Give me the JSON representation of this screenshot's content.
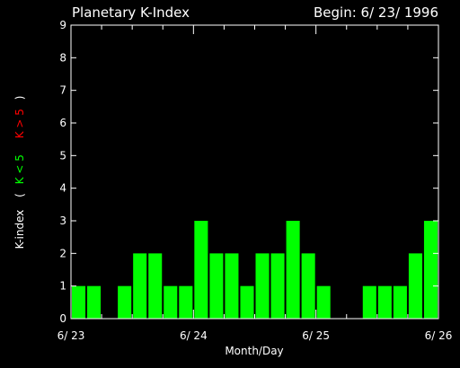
{
  "chart_data": {
    "type": "bar",
    "title": "Planetary K-Index",
    "subtitle": "Begin: 6/ 23/ 1996",
    "xlabel": "Month/Day",
    "ylabel": "K-index",
    "ylabel_legend": {
      "open": "(",
      "low": "K < 5",
      "high": "K > 5",
      "close": ")"
    },
    "ylim": [
      0,
      9
    ],
    "yticks": [
      "0",
      "1",
      "2",
      "3",
      "4",
      "5",
      "6",
      "7",
      "8",
      "9"
    ],
    "xticks": [
      "6/ 23",
      "6/ 24",
      "6/ 25",
      "6/ 26"
    ],
    "bins_per_day": 8,
    "days": 3,
    "values": [
      1,
      1,
      0,
      1,
      2,
      2,
      1,
      1,
      3,
      2,
      2,
      1,
      2,
      2,
      3,
      2,
      1,
      0,
      0,
      1,
      1,
      1,
      2,
      3
    ],
    "threshold": 5,
    "colors": {
      "low": "#00ff00",
      "high": "#ff0000",
      "axis": "#ffffff",
      "background": "#000000",
      "legend_low": "#00ff00",
      "legend_high": "#ff0000"
    }
  }
}
